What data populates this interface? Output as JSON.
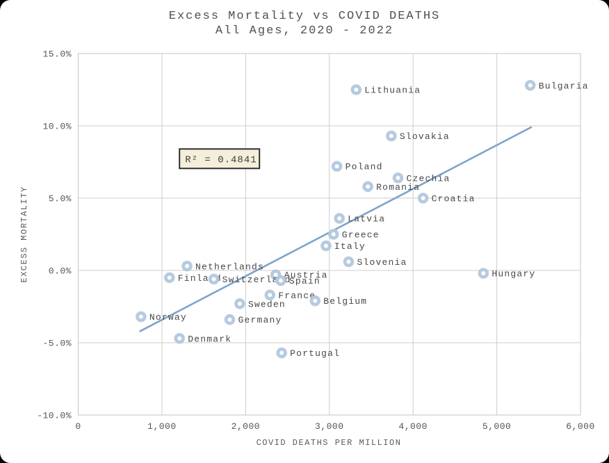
{
  "window": {
    "background_color": "#000000",
    "card_color": "#ffffff"
  },
  "chart": {
    "title_line1": "Excess Mortality vs COVID DEATHS",
    "title_line2": "All Ages, 2020 - 2022",
    "xlabel": "COVID DEATHS PER MILLION",
    "ylabel": "EXCESS MORTALITY"
  },
  "colors": {
    "marker_ring": "#b6cadf",
    "marker_center": "#fdfeff",
    "trendline": "#7ba3cb",
    "gridline": "#cccccc",
    "plot_border": "#c4c4c4",
    "annotation_bg": "#f5eeda",
    "annotation_border": "#2f2f2f"
  },
  "chart_data": {
    "type": "scatter",
    "title": "Excess Mortality vs COVID DEATHS",
    "subtitle": "All Ages, 2020 - 2022",
    "xlabel": "COVID DEATHS PER MILLION",
    "ylabel": "EXCESS MORTALITY",
    "xlim": [
      0,
      6000
    ],
    "ylim": [
      -10,
      15
    ],
    "grid": true,
    "x_ticks": [
      {
        "v": 0,
        "label": "0"
      },
      {
        "v": 1000,
        "label": "1,000"
      },
      {
        "v": 2000,
        "label": "2,000"
      },
      {
        "v": 3000,
        "label": "3,000"
      },
      {
        "v": 4000,
        "label": "4,000"
      },
      {
        "v": 5000,
        "label": "5,000"
      },
      {
        "v": 6000,
        "label": "6,000"
      }
    ],
    "y_ticks": [
      {
        "v": 15,
        "label": "15.0%"
      },
      {
        "v": 10,
        "label": "10.0%"
      },
      {
        "v": 5,
        "label": "5.0%"
      },
      {
        "v": 0,
        "label": "0.0%"
      },
      {
        "v": -5,
        "label": "-5.0%"
      },
      {
        "v": -10,
        "label": "-10.0%"
      }
    ],
    "points": [
      {
        "country": "Lithuania",
        "x": 3320,
        "y": 12.5
      },
      {
        "country": "Bulgaria",
        "x": 5400,
        "y": 12.8
      },
      {
        "country": "Slovakia",
        "x": 3740,
        "y": 9.3
      },
      {
        "country": "Poland",
        "x": 3090,
        "y": 7.2
      },
      {
        "country": "Czechia",
        "x": 3820,
        "y": 6.4
      },
      {
        "country": "Romania",
        "x": 3460,
        "y": 5.8
      },
      {
        "country": "Croatia",
        "x": 4120,
        "y": 5.0
      },
      {
        "country": "Latvia",
        "x": 3120,
        "y": 3.6
      },
      {
        "country": "Greece",
        "x": 3050,
        "y": 2.5
      },
      {
        "country": "Italy",
        "x": 2960,
        "y": 1.7
      },
      {
        "country": "Slovenia",
        "x": 3230,
        "y": 0.6
      },
      {
        "country": "Netherlands",
        "x": 1300,
        "y": 0.3
      },
      {
        "country": "Hungary",
        "x": 4840,
        "y": -0.2
      },
      {
        "country": "Austria",
        "x": 2360,
        "y": -0.3
      },
      {
        "country": "Finland",
        "x": 1090,
        "y": -0.5
      },
      {
        "country": "Switzerland",
        "x": 1620,
        "y": -0.6
      },
      {
        "country": "Spain",
        "x": 2420,
        "y": -0.7
      },
      {
        "country": "France",
        "x": 2290,
        "y": -1.7
      },
      {
        "country": "Belgium",
        "x": 2830,
        "y": -2.1
      },
      {
        "country": "Sweden",
        "x": 1930,
        "y": -2.3
      },
      {
        "country": "Norway",
        "x": 750,
        "y": -3.2
      },
      {
        "country": "Germany",
        "x": 1810,
        "y": -3.4
      },
      {
        "country": "Denmark",
        "x": 1210,
        "y": -4.7
      },
      {
        "country": "Portugal",
        "x": 2430,
        "y": -5.7
      }
    ],
    "trendline": {
      "x1": 740,
      "y1": -4.2,
      "x2": 5410,
      "y2": 9.9
    },
    "annotation": {
      "text": "R² = 0.4841",
      "r_squared": 0.4841,
      "anchor_x": 1210,
      "anchor_y": 8.4
    },
    "legend": null
  }
}
